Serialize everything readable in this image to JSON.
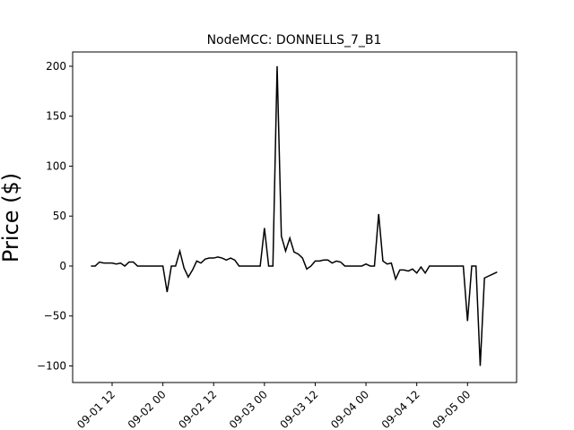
{
  "chart_data": {
    "type": "line",
    "title": "NodeMCC: DONNELLS_7_B1",
    "y_label": "Price ($)",
    "x": [
      7,
      8,
      9,
      10,
      11,
      12,
      13,
      14,
      15,
      16,
      17,
      18,
      19,
      20,
      21,
      22,
      23,
      24,
      25,
      26,
      27,
      28,
      29,
      30,
      31,
      32,
      33,
      34,
      35,
      36,
      37,
      38,
      39,
      40,
      41,
      42,
      43,
      44,
      45,
      46,
      47,
      48,
      49,
      50,
      51,
      52,
      53,
      54,
      55,
      56,
      57,
      58,
      59,
      60,
      61,
      62,
      63,
      64,
      65,
      66,
      67,
      68,
      69,
      70,
      71,
      72,
      73,
      74,
      75,
      76,
      77,
      78,
      79,
      80,
      81,
      82,
      83,
      84,
      85,
      86,
      87,
      88,
      89,
      90,
      91,
      92,
      93,
      94,
      95,
      96,
      97,
      98,
      99,
      100,
      101,
      102,
      103
    ],
    "series": [
      {
        "name": "NodeMCC",
        "color": "#000000",
        "values": [
          0,
          0,
          4,
          3,
          3,
          3,
          2,
          3,
          0,
          4,
          4,
          0,
          0,
          0,
          0,
          0,
          0,
          0,
          -26,
          0,
          0,
          15,
          -2,
          -11,
          -4,
          5,
          3,
          7,
          8,
          8,
          9,
          8,
          6,
          8,
          6,
          0,
          0,
          0,
          0,
          0,
          0,
          38,
          0,
          0,
          200,
          30,
          15,
          28,
          14,
          12,
          8,
          -3,
          0,
          5,
          5,
          6,
          6,
          3,
          5,
          4,
          0,
          0,
          0,
          0,
          0,
          2,
          0,
          0,
          52,
          5,
          2,
          3,
          -13,
          -4,
          -4,
          -5,
          -3,
          -7,
          -1,
          -7,
          0,
          0,
          0,
          0,
          0,
          0,
          0,
          0,
          0,
          -55,
          0,
          0,
          -100,
          -12,
          -10,
          -8,
          -6
        ]
      }
    ],
    "xlim": [
      2.67,
      107.6
    ],
    "xticks": [
      {
        "value": 12,
        "label": "09-01 12"
      },
      {
        "value": 24,
        "label": "09-02 00"
      },
      {
        "value": 36,
        "label": "09-02 12"
      },
      {
        "value": 48,
        "label": "09-03 00"
      },
      {
        "value": 60,
        "label": "09-03 12"
      },
      {
        "value": 72,
        "label": "09-04 00"
      },
      {
        "value": 84,
        "label": "09-04 12"
      },
      {
        "value": 96,
        "label": "09-05 00"
      }
    ],
    "ylim": [
      -116.6,
      214.3
    ],
    "yticks": [
      {
        "value": -100,
        "label": "−100"
      },
      {
        "value": -50,
        "label": "−50"
      },
      0,
      50,
      100,
      150,
      200
    ]
  }
}
